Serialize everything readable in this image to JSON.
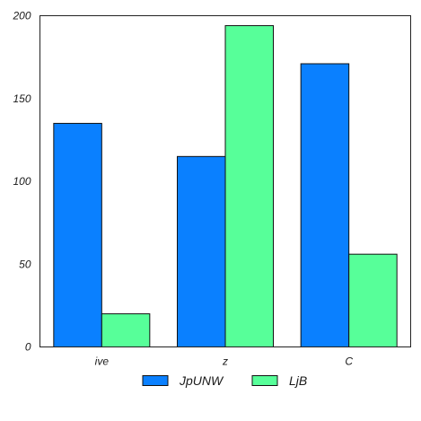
{
  "chart_data": {
    "type": "bar",
    "categories": [
      "ive",
      "z",
      "C"
    ],
    "series": [
      {
        "name": "JpUNW",
        "values": [
          135,
          115,
          171
        ],
        "color": "#0a80ff"
      },
      {
        "name": "LjB",
        "values": [
          20,
          194,
          56
        ],
        "color": "#57ff99"
      }
    ],
    "ylim": [
      0,
      200
    ],
    "yticks": [
      0,
      50,
      100,
      150,
      200
    ],
    "grid": false,
    "legend_position": "bottom-center",
    "title": "",
    "xlabel": "",
    "ylabel": ""
  }
}
